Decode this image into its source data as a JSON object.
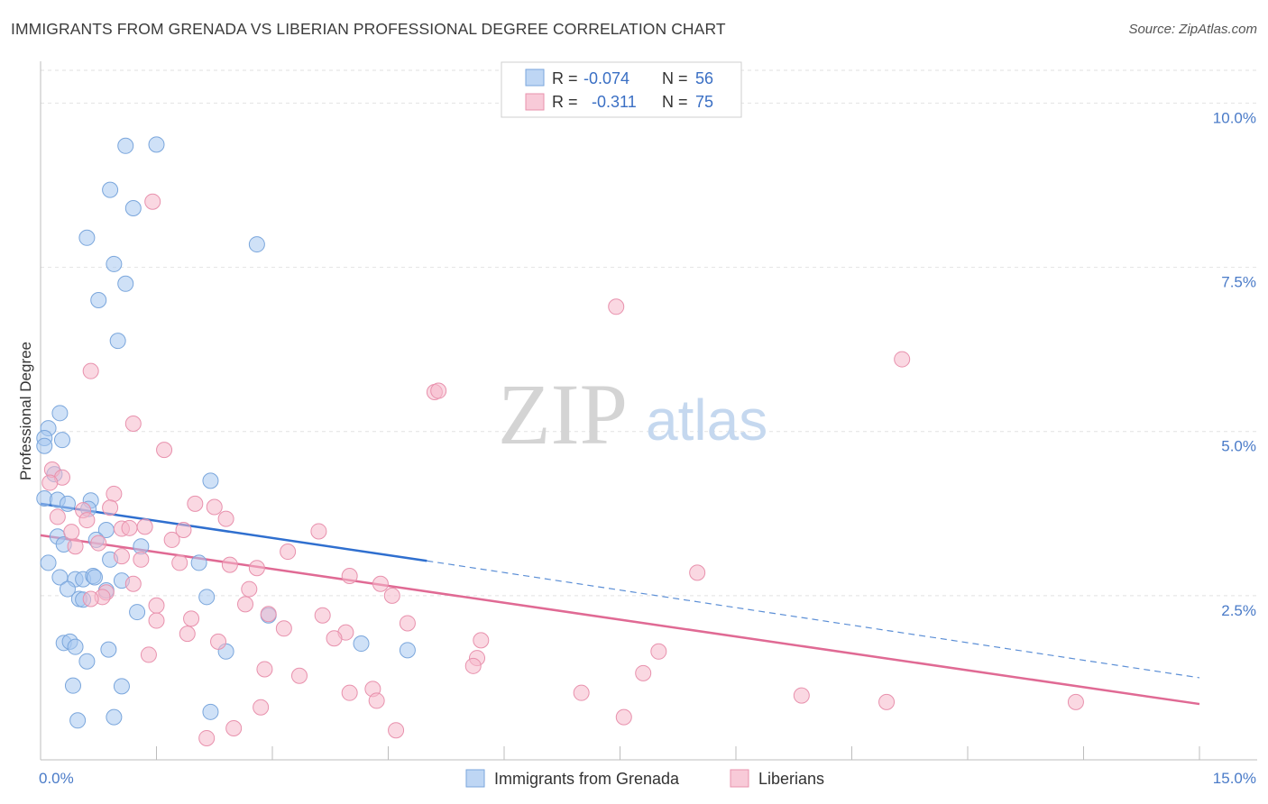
{
  "title": "IMMIGRANTS FROM GRENADA VS LIBERIAN PROFESSIONAL DEGREE CORRELATION CHART",
  "source": "Source: ZipAtlas.com",
  "watermark": {
    "zip": "ZIP",
    "atlas": "atlas"
  },
  "legend_top": {
    "rows": [
      {
        "r_label": "R =",
        "r_value": "-0.074",
        "n_label": "N =",
        "n_value": "56",
        "color": "#a8c8f0"
      },
      {
        "r_label": "R =",
        "r_value": "-0.311",
        "n_label": "N =",
        "n_value": "75",
        "color": "#f5b8cb"
      }
    ]
  },
  "legend_bottom": {
    "items": [
      {
        "label": "Immigrants from Grenada",
        "color": "#a8c8f0"
      },
      {
        "label": "Liberians",
        "color": "#f5b8cb"
      }
    ]
  },
  "chart_data": {
    "type": "scatter",
    "title": "IMMIGRANTS FROM GRENADA VS LIBERIAN PROFESSIONAL DEGREE CORRELATION CHART",
    "xlabel": "",
    "ylabel": "Professional Degree",
    "xlim": [
      0,
      15
    ],
    "ylim": [
      0,
      10.5
    ],
    "x_tick_labels": [
      {
        "value": 0,
        "label": "0.0%"
      },
      {
        "value": 15,
        "label": "15.0%"
      }
    ],
    "y_tick_labels": [
      {
        "value": 2.5,
        "label": "2.5%"
      },
      {
        "value": 5.0,
        "label": "5.0%"
      },
      {
        "value": 7.5,
        "label": "7.5%"
      },
      {
        "value": 10.0,
        "label": "10.0%"
      }
    ],
    "grid": true,
    "legend_position": "top-center",
    "series": [
      {
        "name": "Immigrants from Grenada",
        "color": "#a8c8f0",
        "edge_color": "#7aa6dc",
        "trend": {
          "x": [
            0.0,
            5.0
          ],
          "y": [
            3.9,
            3.03
          ],
          "color": "#2f6fcf"
        },
        "trend_extension": {
          "x": [
            5.0,
            15.0
          ],
          "y": [
            3.03,
            1.25
          ],
          "color": "#5c8fd6",
          "dashed": true
        },
        "points": [
          {
            "x": 1.1,
            "y": 9.35
          },
          {
            "x": 1.5,
            "y": 9.37
          },
          {
            "x": 0.9,
            "y": 8.68
          },
          {
            "x": 1.2,
            "y": 8.4
          },
          {
            "x": 0.6,
            "y": 7.95
          },
          {
            "x": 2.8,
            "y": 7.85
          },
          {
            "x": 0.95,
            "y": 7.55
          },
          {
            "x": 1.1,
            "y": 7.25
          },
          {
            "x": 0.75,
            "y": 7.0
          },
          {
            "x": 1.0,
            "y": 6.38
          },
          {
            "x": 0.25,
            "y": 5.28
          },
          {
            "x": 0.1,
            "y": 5.05
          },
          {
            "x": 0.05,
            "y": 4.9
          },
          {
            "x": 0.28,
            "y": 4.87
          },
          {
            "x": 0.05,
            "y": 4.78
          },
          {
            "x": 0.18,
            "y": 4.35
          },
          {
            "x": 2.2,
            "y": 4.25
          },
          {
            "x": 0.05,
            "y": 3.98
          },
          {
            "x": 0.22,
            "y": 3.96
          },
          {
            "x": 0.35,
            "y": 3.9
          },
          {
            "x": 0.65,
            "y": 3.95
          },
          {
            "x": 0.62,
            "y": 3.82
          },
          {
            "x": 0.85,
            "y": 3.5
          },
          {
            "x": 0.22,
            "y": 3.4
          },
          {
            "x": 0.72,
            "y": 3.35
          },
          {
            "x": 0.3,
            "y": 3.28
          },
          {
            "x": 1.3,
            "y": 3.25
          },
          {
            "x": 0.9,
            "y": 3.05
          },
          {
            "x": 0.1,
            "y": 3.0
          },
          {
            "x": 2.05,
            "y": 3.0
          },
          {
            "x": 0.25,
            "y": 2.78
          },
          {
            "x": 0.45,
            "y": 2.75
          },
          {
            "x": 0.55,
            "y": 2.75
          },
          {
            "x": 0.68,
            "y": 2.8
          },
          {
            "x": 0.7,
            "y": 2.78
          },
          {
            "x": 1.05,
            "y": 2.73
          },
          {
            "x": 0.35,
            "y": 2.6
          },
          {
            "x": 0.85,
            "y": 2.58
          },
          {
            "x": 0.5,
            "y": 2.45
          },
          {
            "x": 0.55,
            "y": 2.44
          },
          {
            "x": 2.15,
            "y": 2.48
          },
          {
            "x": 1.25,
            "y": 2.25
          },
          {
            "x": 2.95,
            "y": 2.2
          },
          {
            "x": 0.3,
            "y": 1.78
          },
          {
            "x": 0.38,
            "y": 1.8
          },
          {
            "x": 0.45,
            "y": 1.72
          },
          {
            "x": 0.88,
            "y": 1.68
          },
          {
            "x": 2.4,
            "y": 1.65
          },
          {
            "x": 4.15,
            "y": 1.77
          },
          {
            "x": 4.75,
            "y": 1.67
          },
          {
            "x": 0.6,
            "y": 1.5
          },
          {
            "x": 0.42,
            "y": 1.13
          },
          {
            "x": 1.05,
            "y": 1.12
          },
          {
            "x": 2.2,
            "y": 0.73
          },
          {
            "x": 0.48,
            "y": 0.6
          },
          {
            "x": 0.95,
            "y": 0.65
          }
        ]
      },
      {
        "name": "Liberians",
        "color": "#f5b8cb",
        "edge_color": "#e891ad",
        "trend": {
          "x": [
            0.0,
            15.0
          ],
          "y": [
            3.42,
            0.85
          ],
          "color": "#e06a94"
        },
        "points": [
          {
            "x": 1.45,
            "y": 8.5
          },
          {
            "x": 7.45,
            "y": 6.9
          },
          {
            "x": 11.15,
            "y": 6.1
          },
          {
            "x": 5.1,
            "y": 5.6
          },
          {
            "x": 5.15,
            "y": 5.62
          },
          {
            "x": 0.65,
            "y": 5.92
          },
          {
            "x": 1.2,
            "y": 5.12
          },
          {
            "x": 1.6,
            "y": 4.72
          },
          {
            "x": 0.15,
            "y": 4.42
          },
          {
            "x": 0.28,
            "y": 4.3
          },
          {
            "x": 0.12,
            "y": 4.22
          },
          {
            "x": 0.95,
            "y": 4.05
          },
          {
            "x": 2.0,
            "y": 3.9
          },
          {
            "x": 2.25,
            "y": 3.85
          },
          {
            "x": 0.55,
            "y": 3.8
          },
          {
            "x": 0.9,
            "y": 3.84
          },
          {
            "x": 0.22,
            "y": 3.7
          },
          {
            "x": 0.6,
            "y": 3.65
          },
          {
            "x": 2.4,
            "y": 3.67
          },
          {
            "x": 1.05,
            "y": 3.52
          },
          {
            "x": 1.15,
            "y": 3.53
          },
          {
            "x": 1.35,
            "y": 3.55
          },
          {
            "x": 1.85,
            "y": 3.5
          },
          {
            "x": 3.6,
            "y": 3.48
          },
          {
            "x": 0.4,
            "y": 3.47
          },
          {
            "x": 1.7,
            "y": 3.35
          },
          {
            "x": 0.45,
            "y": 3.25
          },
          {
            "x": 3.2,
            "y": 3.17
          },
          {
            "x": 1.3,
            "y": 3.05
          },
          {
            "x": 1.8,
            "y": 3.0
          },
          {
            "x": 2.45,
            "y": 2.97
          },
          {
            "x": 2.8,
            "y": 2.92
          },
          {
            "x": 8.5,
            "y": 2.85
          },
          {
            "x": 4.0,
            "y": 2.8
          },
          {
            "x": 1.2,
            "y": 2.68
          },
          {
            "x": 4.4,
            "y": 2.68
          },
          {
            "x": 0.85,
            "y": 2.55
          },
          {
            "x": 0.8,
            "y": 2.48
          },
          {
            "x": 4.55,
            "y": 2.5
          },
          {
            "x": 1.5,
            "y": 2.35
          },
          {
            "x": 2.65,
            "y": 2.37
          },
          {
            "x": 2.95,
            "y": 2.22
          },
          {
            "x": 3.65,
            "y": 2.2
          },
          {
            "x": 1.5,
            "y": 2.12
          },
          {
            "x": 1.95,
            "y": 2.15
          },
          {
            "x": 4.75,
            "y": 2.08
          },
          {
            "x": 1.9,
            "y": 1.92
          },
          {
            "x": 3.95,
            "y": 1.94
          },
          {
            "x": 5.7,
            "y": 1.82
          },
          {
            "x": 3.8,
            "y": 1.85
          },
          {
            "x": 2.3,
            "y": 1.8
          },
          {
            "x": 1.4,
            "y": 1.6
          },
          {
            "x": 8.0,
            "y": 1.65
          },
          {
            "x": 5.65,
            "y": 1.55
          },
          {
            "x": 5.6,
            "y": 1.43
          },
          {
            "x": 2.9,
            "y": 1.38
          },
          {
            "x": 3.35,
            "y": 1.28
          },
          {
            "x": 7.8,
            "y": 1.32
          },
          {
            "x": 4.3,
            "y": 1.08
          },
          {
            "x": 4.0,
            "y": 1.02
          },
          {
            "x": 7.0,
            "y": 1.02
          },
          {
            "x": 4.35,
            "y": 0.9
          },
          {
            "x": 9.85,
            "y": 0.98
          },
          {
            "x": 10.95,
            "y": 0.88
          },
          {
            "x": 13.4,
            "y": 0.88
          },
          {
            "x": 2.85,
            "y": 0.8
          },
          {
            "x": 7.55,
            "y": 0.65
          },
          {
            "x": 2.5,
            "y": 0.48
          },
          {
            "x": 4.6,
            "y": 0.45
          },
          {
            "x": 2.15,
            "y": 0.33
          },
          {
            "x": 0.65,
            "y": 2.45
          },
          {
            "x": 3.15,
            "y": 2.0
          },
          {
            "x": 1.05,
            "y": 3.1
          },
          {
            "x": 2.7,
            "y": 2.6
          },
          {
            "x": 0.75,
            "y": 3.3
          }
        ]
      }
    ]
  }
}
